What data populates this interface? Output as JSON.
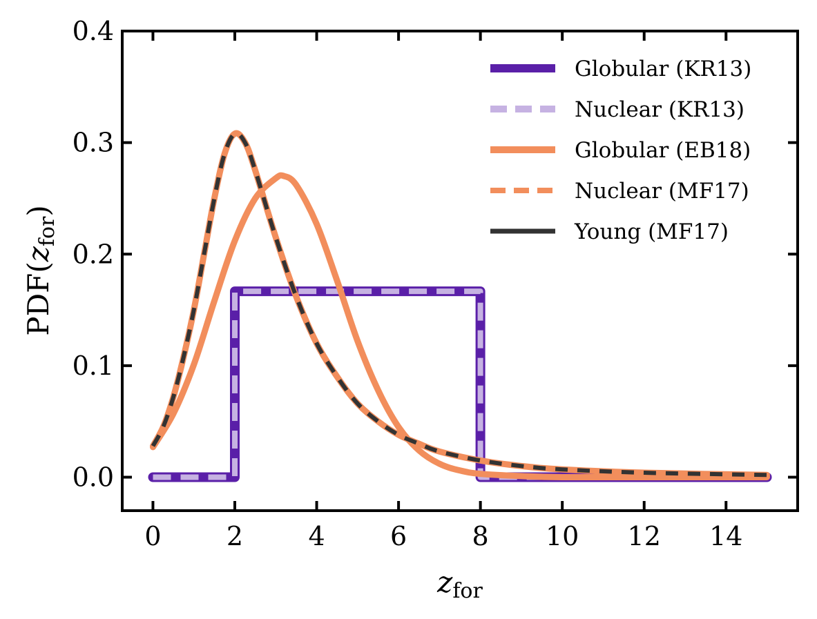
{
  "chart_data": {
    "type": "line",
    "title": "",
    "xlabel": {
      "base": "z",
      "sub": "for"
    },
    "ylabel": {
      "prefix": "PDF(",
      "base": "z",
      "sub": "for",
      "suffix": ")"
    },
    "xlim": [
      -0.75,
      15.75
    ],
    "ylim": [
      -0.03,
      0.4
    ],
    "xticks": [
      0,
      2,
      4,
      6,
      8,
      10,
      12,
      14
    ],
    "yticks": [
      0.0,
      0.1,
      0.2,
      0.3,
      0.4
    ],
    "xtick_labels": [
      "0",
      "2",
      "4",
      "6",
      "8",
      "10",
      "12",
      "14"
    ],
    "ytick_labels": [
      "0.0",
      "0.1",
      "0.2",
      "0.3",
      "0.4"
    ],
    "legend_position": "top-right",
    "series": [
      {
        "name": "Globular (KR13)",
        "color": "#5a1fa8",
        "style": "solid",
        "x": [
          0,
          2,
          2,
          8,
          8,
          15
        ],
        "y": [
          0,
          0,
          0.1667,
          0.1667,
          0,
          0
        ]
      },
      {
        "name": "Nuclear (KR13)",
        "color": "#c6b2e2",
        "style": "dashed",
        "x": [
          0,
          2,
          2,
          8,
          8,
          15
        ],
        "y": [
          0,
          0,
          0.1667,
          0.1667,
          0,
          0
        ]
      },
      {
        "name": "Globular (EB18)",
        "color": "#f28e5c",
        "style": "solid",
        "x": [
          0,
          0.5,
          1,
          1.5,
          2,
          2.5,
          3,
          3.2,
          3.5,
          4,
          4.5,
          5,
          5.5,
          6,
          6.5,
          7,
          7.5,
          8,
          9,
          10,
          12,
          15
        ],
        "y": [
          0.027,
          0.057,
          0.101,
          0.158,
          0.212,
          0.25,
          0.268,
          0.27,
          0.262,
          0.227,
          0.176,
          0.122,
          0.078,
          0.045,
          0.024,
          0.012,
          0.006,
          0.003,
          0.001,
          0.0,
          0.0,
          0.0
        ]
      },
      {
        "name": "Nuclear (MF17)",
        "color": "#f28e5c",
        "style": "dashed",
        "x": [
          0,
          0.25,
          0.5,
          0.75,
          1,
          1.25,
          1.5,
          1.75,
          2,
          2.25,
          2.5,
          3,
          3.5,
          4,
          4.5,
          5,
          5.5,
          6,
          6.5,
          7,
          8,
          9,
          10,
          12,
          15
        ],
        "y": [
          0.028,
          0.045,
          0.072,
          0.108,
          0.15,
          0.2,
          0.25,
          0.29,
          0.308,
          0.3,
          0.275,
          0.215,
          0.162,
          0.12,
          0.09,
          0.066,
          0.05,
          0.038,
          0.03,
          0.023,
          0.015,
          0.01,
          0.007,
          0.004,
          0.002
        ]
      },
      {
        "name": "Young (MF17)",
        "color": "#333333",
        "style": "solid",
        "x": [
          0,
          0.25,
          0.5,
          0.75,
          1,
          1.25,
          1.5,
          1.75,
          2,
          2.25,
          2.5,
          3,
          3.5,
          4,
          4.5,
          5,
          5.5,
          6,
          6.5,
          7,
          8,
          9,
          10,
          12,
          15
        ],
        "y": [
          0.028,
          0.045,
          0.072,
          0.108,
          0.15,
          0.2,
          0.25,
          0.29,
          0.308,
          0.3,
          0.275,
          0.215,
          0.162,
          0.12,
          0.09,
          0.066,
          0.05,
          0.038,
          0.03,
          0.023,
          0.015,
          0.01,
          0.007,
          0.004,
          0.002
        ]
      }
    ]
  }
}
